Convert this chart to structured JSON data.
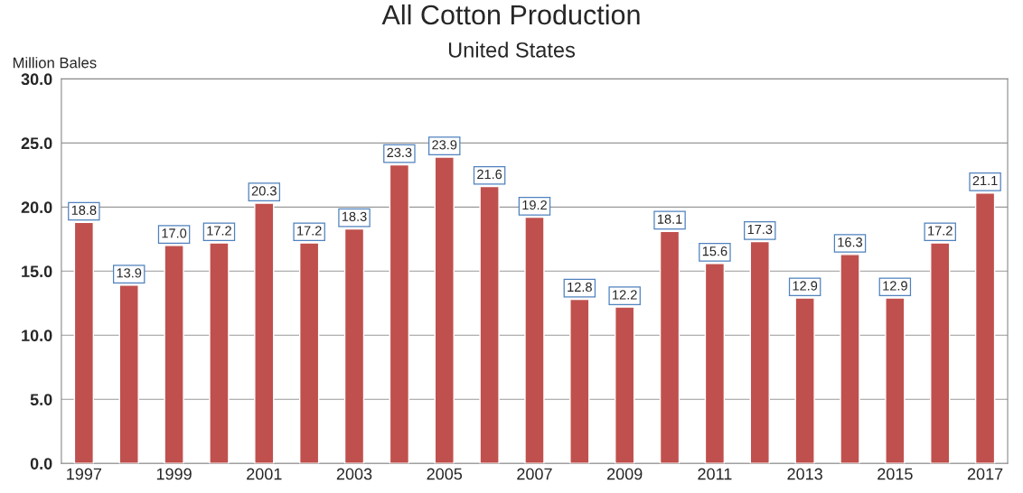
{
  "chart_data": {
    "type": "bar",
    "title": "All Cotton Production",
    "subtitle": "United States",
    "ylabel": "Million Bales",
    "categories": [
      "1997",
      null,
      "1999",
      null,
      "2001",
      null,
      "2003",
      null,
      "2005",
      null,
      "2007",
      null,
      "2009",
      null,
      "2011",
      null,
      "2013",
      null,
      "2015",
      null,
      "2017"
    ],
    "values": [
      18.8,
      13.9,
      17.0,
      17.2,
      20.3,
      17.2,
      18.3,
      23.3,
      23.9,
      21.6,
      19.2,
      12.8,
      12.2,
      18.1,
      15.6,
      17.3,
      12.9,
      16.3,
      12.9,
      17.2,
      21.1
    ],
    "value_labels": [
      "18.8",
      "13.9",
      "17.0",
      "17.2",
      "20.3",
      "17.2",
      "18.3",
      "23.3",
      "23.9",
      "21.6",
      "19.2",
      "12.8",
      "12.2",
      "18.1",
      "15.6",
      "17.3",
      "12.9",
      "16.3",
      "12.9",
      "17.2",
      "21.1"
    ],
    "color": "#c0504d",
    "ylim": [
      0,
      30
    ],
    "yticks": [
      {
        "value": 0,
        "label": "0.0"
      },
      {
        "value": 5,
        "label": "5.0"
      },
      {
        "value": 10,
        "label": "10.0"
      },
      {
        "value": 15,
        "label": "15.0"
      },
      {
        "value": 20,
        "label": "20.0"
      },
      {
        "value": 25,
        "label": "25.0"
      },
      {
        "value": 30,
        "label": "30.0"
      }
    ],
    "grid": "y",
    "legend": false
  }
}
